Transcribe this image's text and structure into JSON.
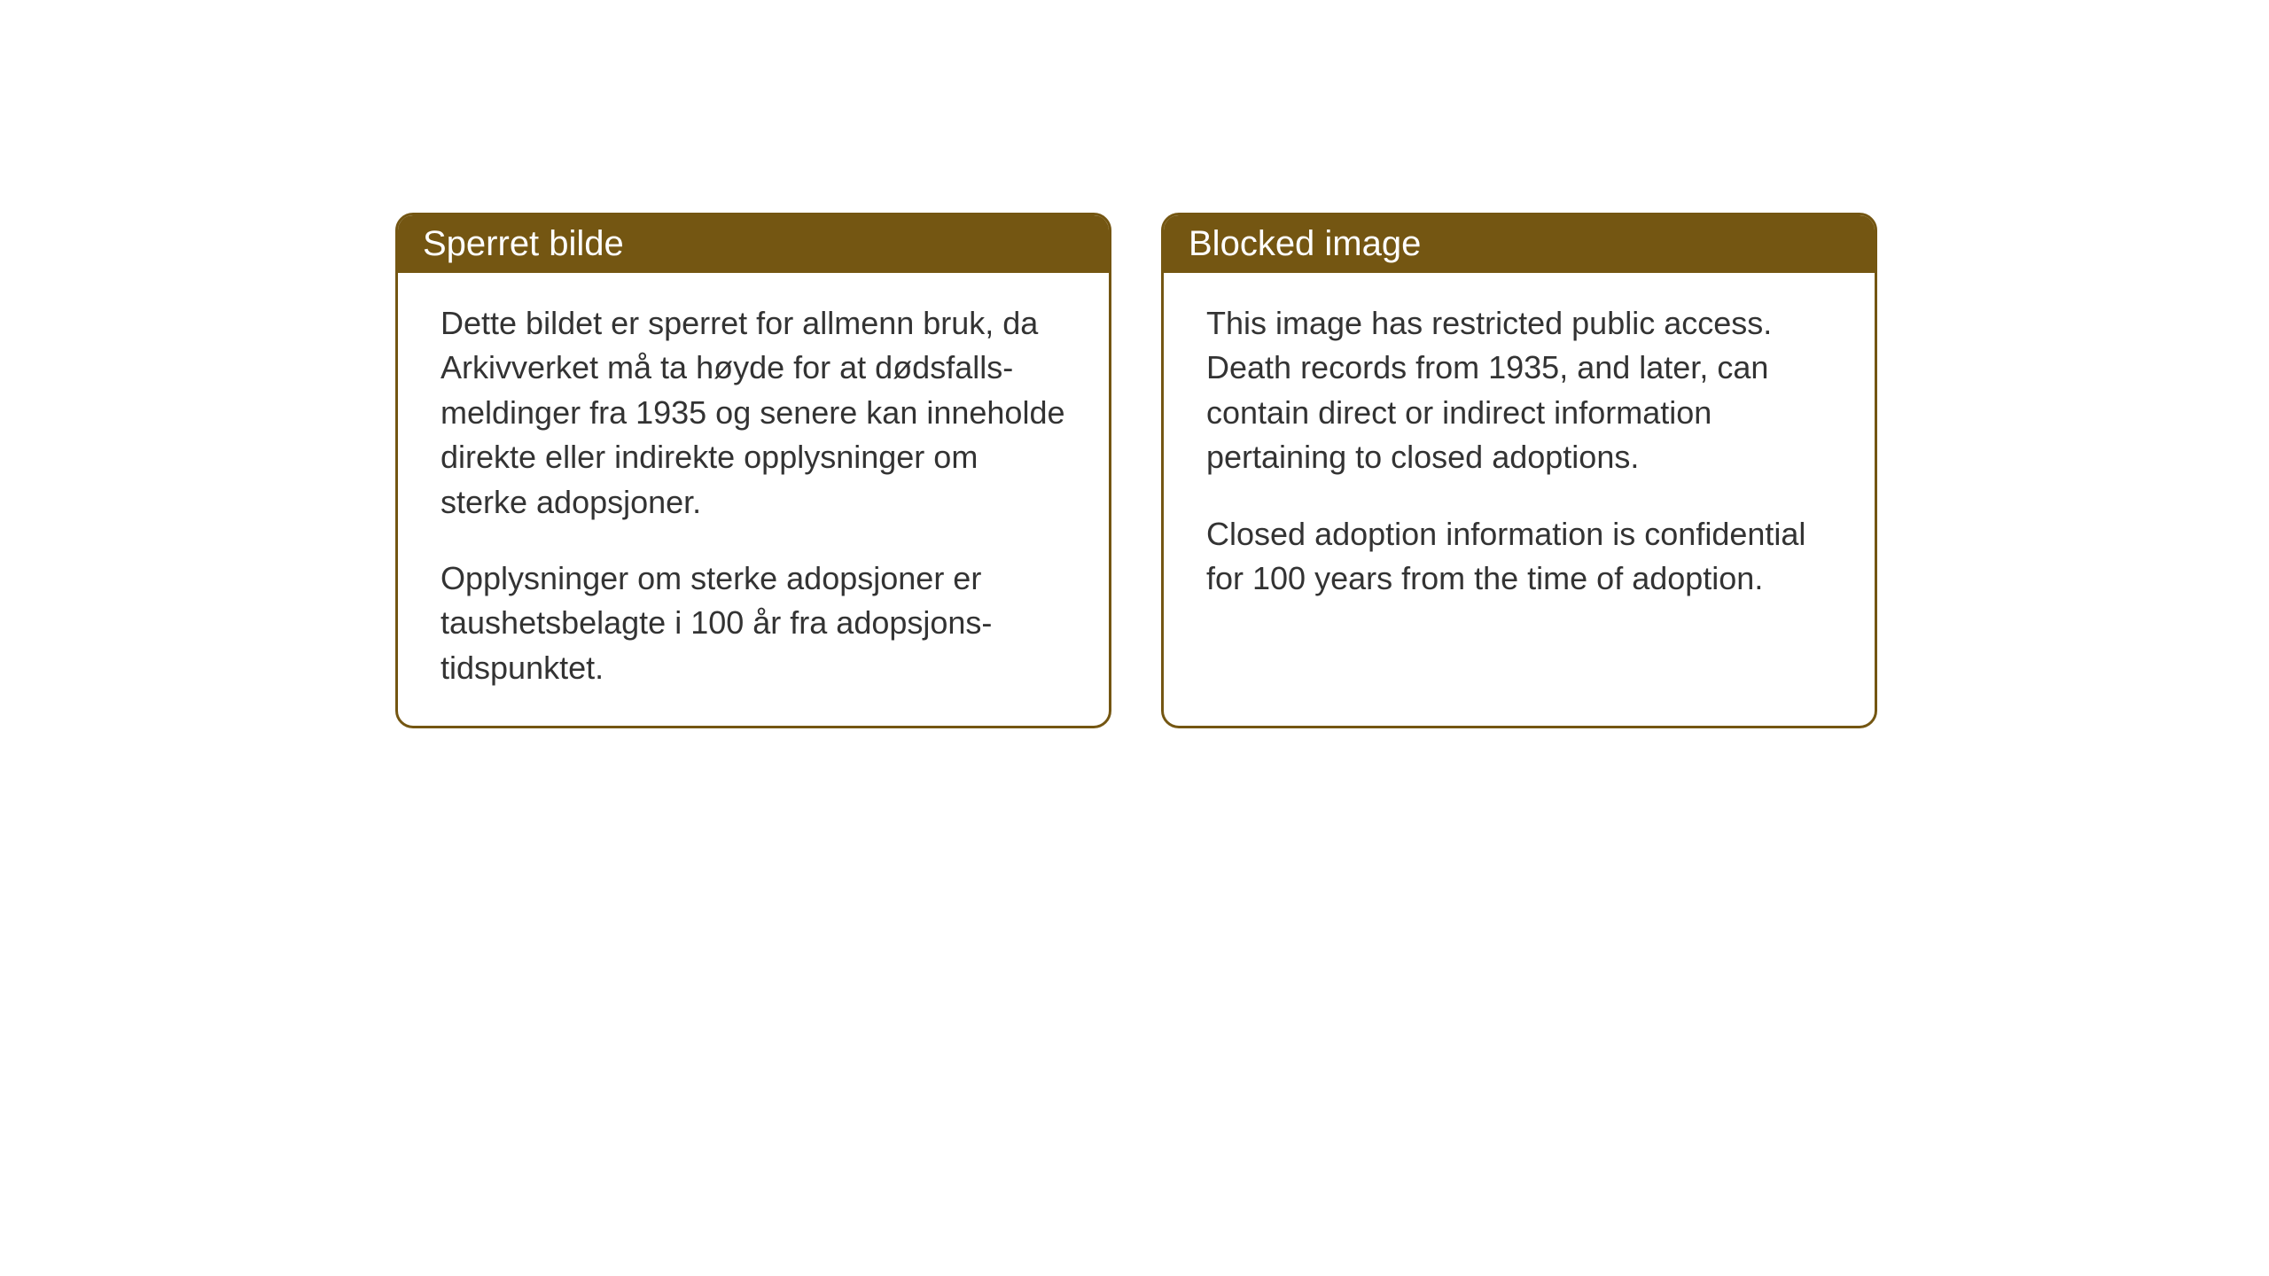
{
  "notices": {
    "norwegian": {
      "title": "Sperret bilde",
      "paragraph1": "Dette bildet er sperret for allmenn bruk, da Arkivverket må ta høyde for at dødsfalls-meldinger fra 1935 og senere kan inneholde direkte eller indirekte opplysninger om sterke adopsjoner.",
      "paragraph2": "Opplysninger om sterke adopsjoner er taushetsbelagte i 100 år fra adopsjons-tidspunktet."
    },
    "english": {
      "title": "Blocked image",
      "paragraph1": "This image has restricted public access. Death records from 1935, and later, can contain direct or indirect information pertaining to closed adoptions.",
      "paragraph2": "Closed adoption information is confidential for 100 years from the time of adoption."
    }
  },
  "styling": {
    "header_background_color": "#745612",
    "header_text_color": "#ffffff",
    "border_color": "#745612",
    "body_background_color": "#ffffff",
    "body_text_color": "#333333",
    "border_radius": 20,
    "border_width": 3,
    "title_fontsize": 40,
    "body_fontsize": 36
  }
}
